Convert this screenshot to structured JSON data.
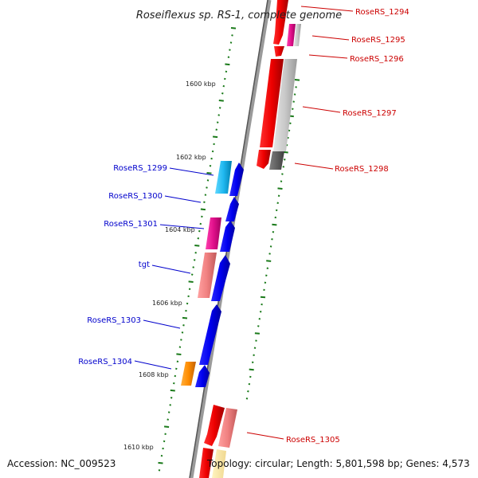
{
  "title": "Roseiflexus sp. RS-1, complete genome",
  "footer": {
    "accession": "Accession: NC_009523",
    "topology": "Topology: circular; Length: 5,801,598 bp; Genes: 4,573"
  },
  "ticks": [
    {
      "label": "1600 kbp"
    },
    {
      "label": "1602 kbp"
    },
    {
      "label": "1604 kbp"
    },
    {
      "label": "1606 kbp"
    },
    {
      "label": "1608 kbp"
    },
    {
      "label": "1610 kbp"
    }
  ],
  "genes_right": [
    {
      "label": "RoseRS_1294"
    },
    {
      "label": "RoseRS_1295"
    },
    {
      "label": "RoseRS_1296"
    },
    {
      "label": "RoseRS_1297"
    },
    {
      "label": "RoseRS_1298"
    },
    {
      "label": "RoseRS_1305"
    }
  ],
  "genes_left": [
    {
      "label": "RoseRS_1299"
    },
    {
      "label": "RoseRS_1300"
    },
    {
      "label": "RoseRS_1301"
    },
    {
      "label": "tgt"
    },
    {
      "label": "RoseRS_1303"
    },
    {
      "label": "RoseRS_1304"
    }
  ],
  "colors": {
    "forward_strand_label": "#0000cc",
    "reverse_strand_label": "#cc0000",
    "backbone": "#888888",
    "tick_marks": "#1a7a1a"
  }
}
